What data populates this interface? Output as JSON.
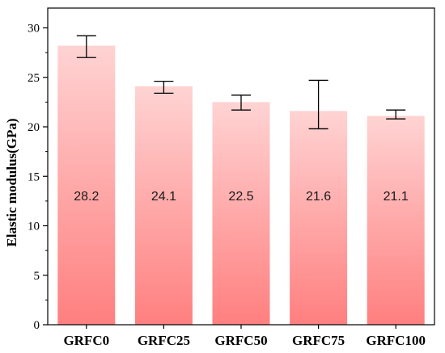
{
  "chart_data": {
    "type": "bar",
    "title": "",
    "xlabel": "",
    "ylabel": "Elastic modulus(GPa)",
    "categories": [
      "GRFC0",
      "GRFC25",
      "GRFC50",
      "GRFC75",
      "GRFC100"
    ],
    "values": [
      28.2,
      24.1,
      22.5,
      21.6,
      21.1
    ],
    "data_labels": [
      "28.2",
      "24.1",
      "22.5",
      "21.6",
      "21.1"
    ],
    "error_low": [
      27.0,
      23.4,
      21.7,
      19.8,
      20.8
    ],
    "error_high": [
      29.2,
      24.6,
      23.2,
      24.7,
      21.7
    ],
    "ylim": [
      0,
      32
    ],
    "yticks": [
      0,
      5,
      10,
      15,
      20,
      25,
      30
    ],
    "ytick_labels": [
      "0",
      "5",
      "10",
      "15",
      "20",
      "25",
      "30"
    ],
    "grid": false,
    "legend": false,
    "bar_gradient": {
      "top": "#ffd3d3",
      "bottom": "#ff7f7f"
    },
    "colors": {
      "axis": "#000000",
      "error_bar": "#000000"
    }
  }
}
